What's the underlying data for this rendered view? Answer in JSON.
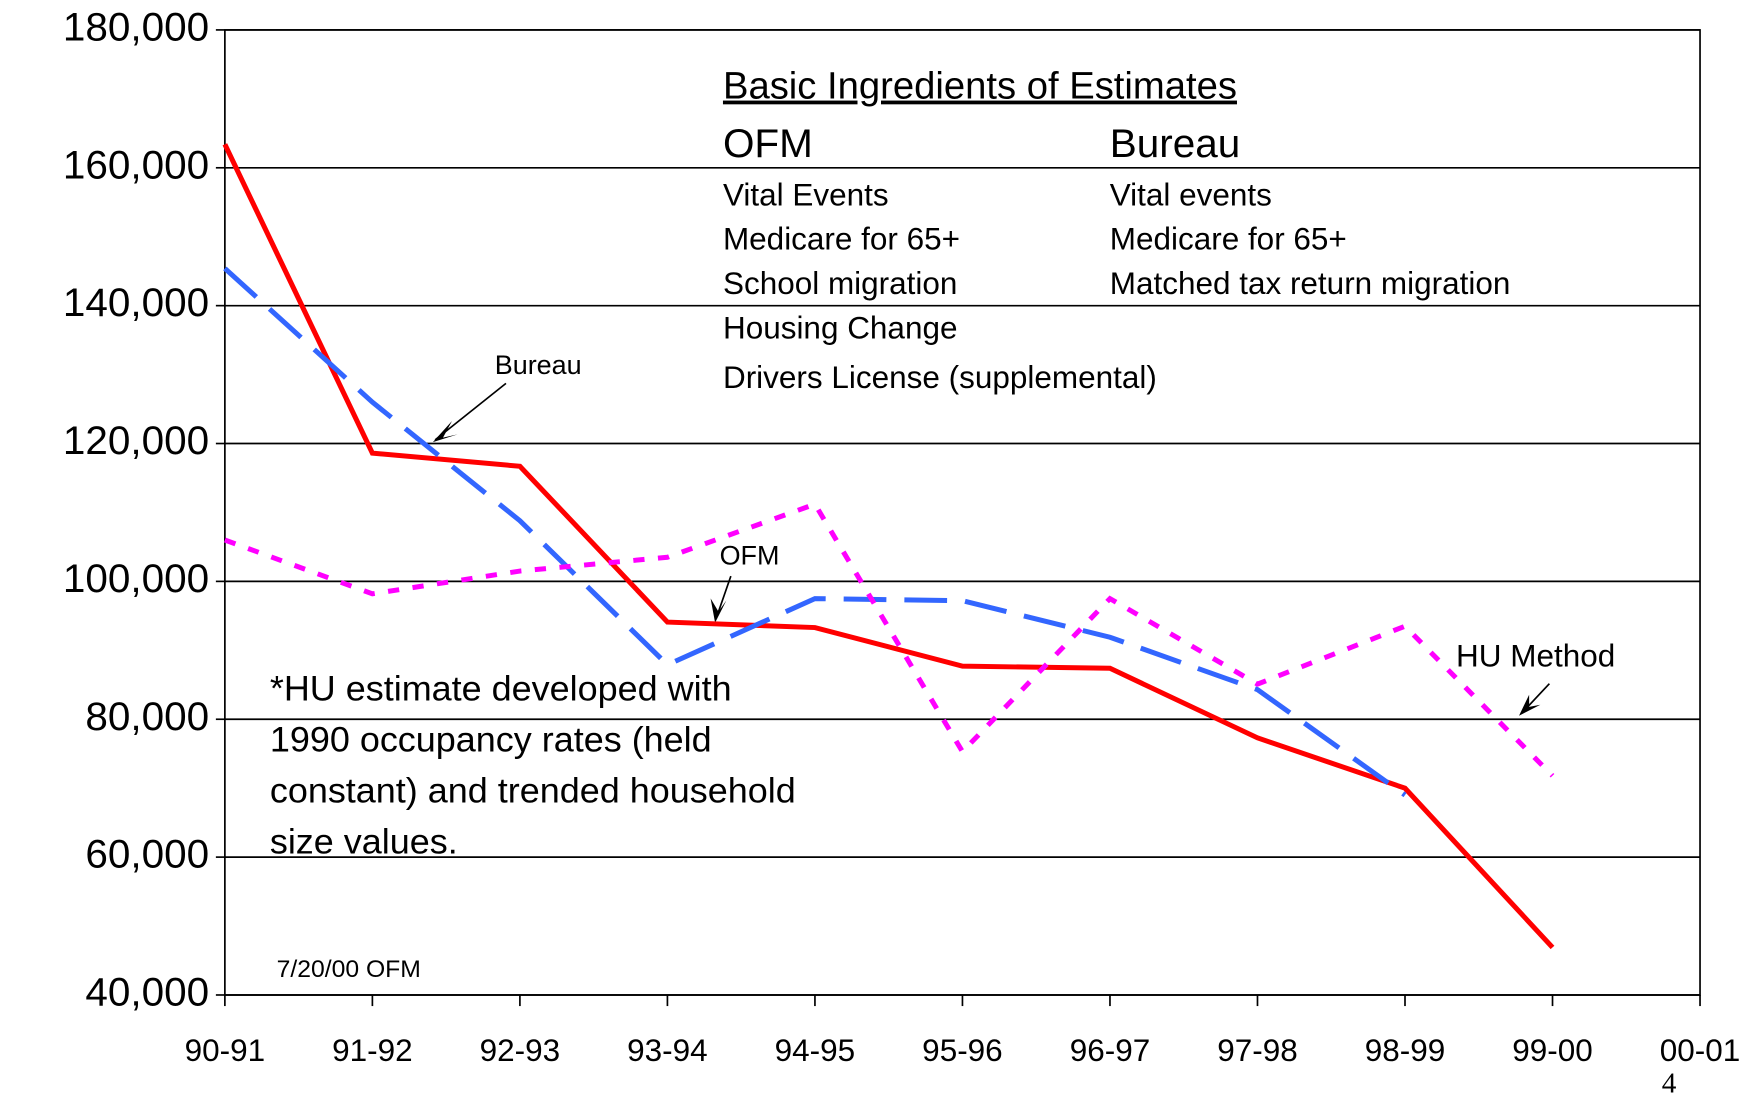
{
  "chart_data": {
    "type": "line",
    "categories": [
      "90-91",
      "91-92",
      "92-93",
      "93-94",
      "94-95",
      "95-96",
      "96-97",
      "97-98",
      "98-99",
      "99-00",
      "00-01"
    ],
    "series": [
      {
        "name": "OFM",
        "color": "#ff0000",
        "dash": "solid",
        "values": [
          163400,
          118600,
          116700,
          94100,
          93300,
          87700,
          87400,
          77300,
          70000,
          46900,
          null
        ]
      },
      {
        "name": "Bureau",
        "color": "#3366ff",
        "dash": "dashed",
        "values": [
          145400,
          126000,
          108800,
          87900,
          97500,
          97200,
          91900,
          84300,
          69000,
          null,
          null
        ]
      },
      {
        "name": "HU Method",
        "color": "#ff00ff",
        "dash": "dotted",
        "values": [
          106000,
          98200,
          101500,
          103500,
          111200,
          75300,
          97500,
          85100,
          93500,
          71800,
          null
        ]
      }
    ],
    "ylim": [
      40000,
      180000
    ],
    "yticks": [
      {
        "value": 40000,
        "label": "40,000"
      },
      {
        "value": 60000,
        "label": "60,000"
      },
      {
        "value": 80000,
        "label": "80,000"
      },
      {
        "value": 100000,
        "label": "100,000"
      },
      {
        "value": 120000,
        "label": "120,000"
      },
      {
        "value": 140000,
        "label": "140,000"
      },
      {
        "value": 160000,
        "label": "160,000"
      },
      {
        "value": 180000,
        "label": "180,000"
      }
    ],
    "grid": true,
    "ingredients": {
      "title": "Basic Ingredients of Estimates",
      "columns": [
        "OFM",
        "Bureau"
      ],
      "rows": [
        [
          "Vital Events",
          "Vital events"
        ],
        [
          "Medicare for 65+",
          "Medicare for 65+"
        ],
        [
          "School migration",
          "Matched tax return migration"
        ],
        [
          "Housing Change",
          null
        ],
        [
          "Drivers License (supplemental)",
          null
        ]
      ]
    },
    "note": [
      "*HU estimate developed with",
      "1990 occupancy rates (held",
      "constant) and trended household",
      "size values."
    ],
    "footer": "7/20/00 OFM",
    "page_number": "4"
  }
}
